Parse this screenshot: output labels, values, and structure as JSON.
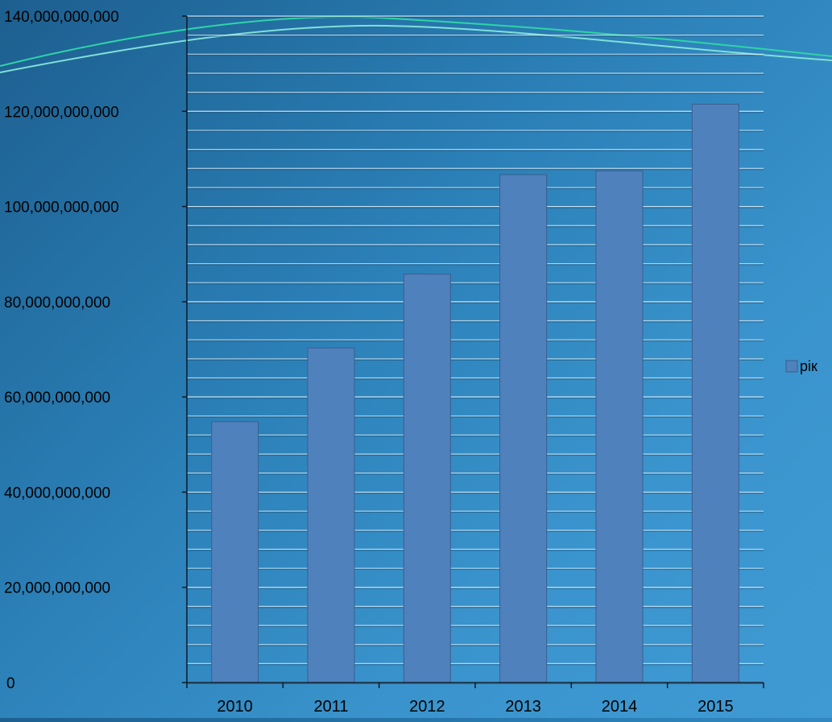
{
  "chart_data": {
    "type": "bar",
    "categories": [
      "2010",
      "2011",
      "2012",
      "2013",
      "2014",
      "2015"
    ],
    "series": [
      {
        "name": "рік",
        "values": [
          54800000000,
          70300000000,
          85800000000,
          106700000000,
          107500000000,
          121500000000
        ]
      }
    ],
    "y_ticks": [
      "0",
      "20,000,000,000",
      "40,000,000,000",
      "60,000,000,000",
      "80,000,000,000",
      "100,000,000,000",
      "120,000,000,000",
      "140,000,000,000"
    ],
    "ylim": [
      0,
      140000000000
    ],
    "grid": true,
    "legend_position": "right",
    "colors": {
      "bar_fill": "#4f81bd",
      "bar_stroke": "#3a5f8c",
      "gridline": "#e8f2f8",
      "gridline_shadow": "#1a4a6e",
      "axis": "#0b1a2a",
      "text": "#000000",
      "wave_1": "#7fe0d8",
      "wave_2": "#2fd4a8"
    }
  }
}
